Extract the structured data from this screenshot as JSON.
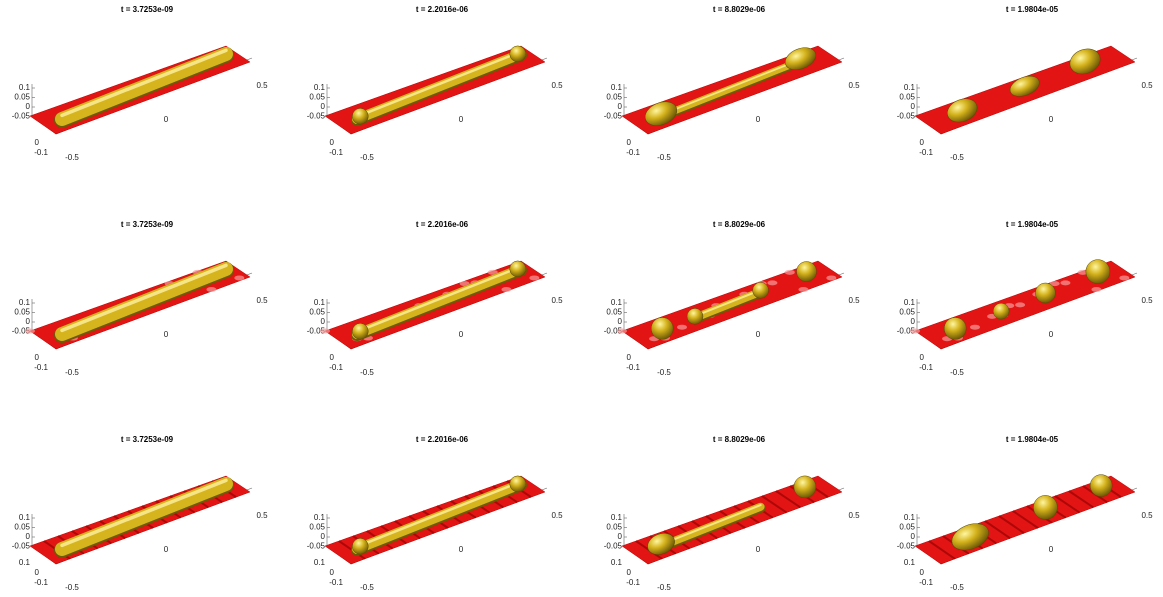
{
  "rows": [
    {
      "titles": [
        "t = 3.7253e-09",
        "t = 2.2016e-06",
        "t = 8.8029e-06",
        "t = 1.9804e-05"
      ],
      "y_ticks": [
        "0",
        "-0.1"
      ]
    },
    {
      "titles": [
        "t = 3.7253e-09",
        "t = 2.2016e-06",
        "t = 8.8029e-06",
        "t = 1.9804e-05"
      ],
      "y_ticks": [
        "0",
        "-0.1"
      ]
    },
    {
      "titles": [
        "t = 3.7253e-09",
        "t = 2.2016e-06",
        "t = 8.8029e-06",
        "t = 1.9804e-05"
      ],
      "y_ticks": [
        "0.1",
        "0",
        "-0.1"
      ]
    }
  ],
  "z_ticks": [
    "0.1",
    "0.05",
    "0",
    "-0.05"
  ],
  "x_ticks": [
    "-0.5",
    "0",
    "0.5"
  ]
}
